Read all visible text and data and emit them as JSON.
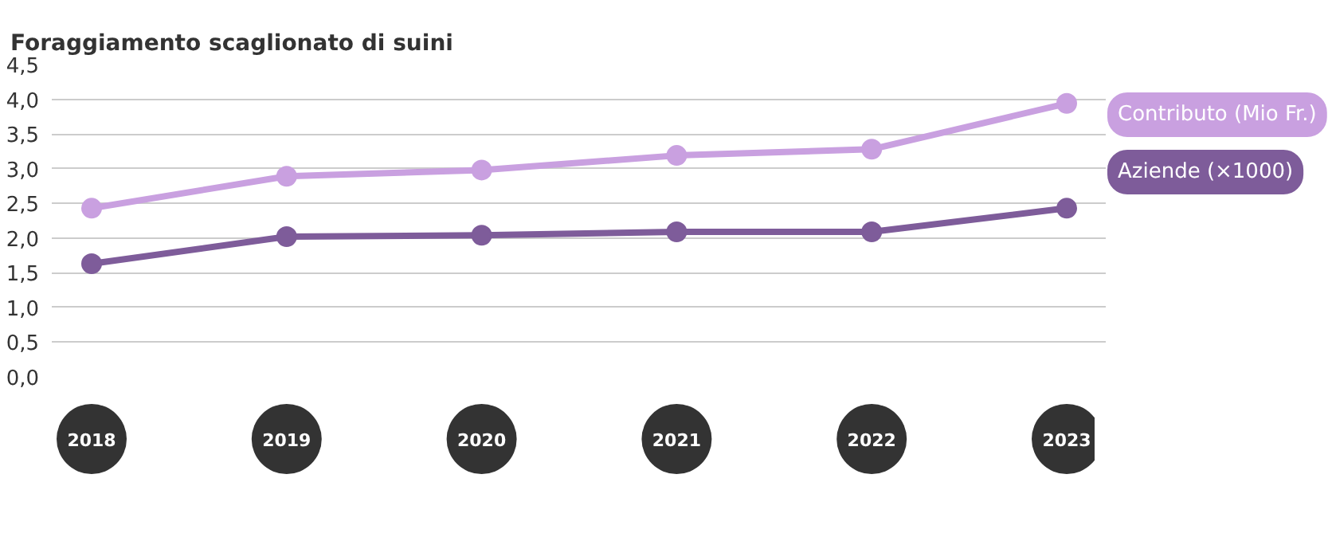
{
  "chart_data": {
    "type": "line",
    "title": "Foraggiamento scaglionato di suini",
    "categories": [
      "2018",
      "2019",
      "2020",
      "2021",
      "2022",
      "2023"
    ],
    "series": [
      {
        "name": "Contributo (Mio Fr.)",
        "color": "#c9a0e0",
        "values": [
          2.43,
          2.89,
          2.98,
          3.19,
          3.28,
          3.94
        ]
      },
      {
        "name": "Aziende (×1000)",
        "color": "#7e5c9a",
        "values": [
          1.63,
          2.02,
          2.04,
          2.09,
          2.09,
          2.43
        ]
      }
    ],
    "ylim": [
      0,
      4.5
    ],
    "yticks": [
      {
        "value": 0,
        "label": "0,0"
      },
      {
        "value": 0.5,
        "label": "0,5"
      },
      {
        "value": 1,
        "label": "1,0"
      },
      {
        "value": 1.5,
        "label": "1,5"
      },
      {
        "value": 2,
        "label": "2,0"
      },
      {
        "value": 2.5,
        "label": "2,5"
      },
      {
        "value": 3,
        "label": "3,0"
      },
      {
        "value": 3.5,
        "label": "3,5"
      },
      {
        "value": 4,
        "label": "4,0"
      },
      {
        "value": 4.5,
        "label": "4,5"
      }
    ],
    "grid": "y",
    "marker": "circle",
    "line_style": "solid"
  }
}
